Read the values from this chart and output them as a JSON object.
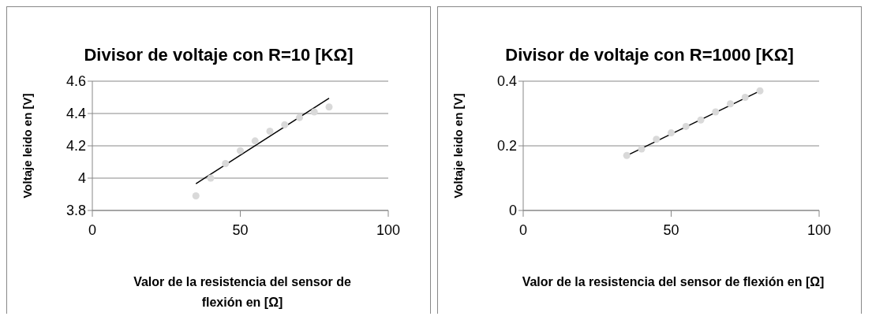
{
  "chart_data": [
    {
      "type": "scatter",
      "title": "Divisor de voltaje con R=10 [KΩ]",
      "xlabel": "Valor de la resistencia del sensor de flexión en [Ω]",
      "ylabel": "Voltaje leido en [V]",
      "xlim": [
        0,
        100
      ],
      "xticks": [
        0,
        50,
        100
      ],
      "ylim": [
        3.8,
        4.6
      ],
      "yticks": [
        3.8,
        4,
        4.2,
        4.4,
        4.6
      ],
      "grid": "y",
      "legend": false,
      "series": [
        {
          "color": "#d9d9d9",
          "marker": "circle",
          "x": [
            35,
            40,
            45,
            50,
            55,
            60,
            65,
            70,
            75,
            80
          ],
          "values": [
            3.89,
            4.0,
            4.09,
            4.17,
            4.23,
            4.29,
            4.33,
            4.375,
            4.41,
            4.44
          ]
        },
        {
          "type": "line",
          "marker": "none",
          "color": "#000000",
          "x": [
            35,
            80
          ],
          "values": [
            3.965,
            4.495
          ]
        }
      ]
    },
    {
      "type": "scatter",
      "title": "Divisor de voltaje con R=1000 [KΩ]",
      "xlabel": "Valor de la resistencia del sensor de flexión en [Ω]",
      "ylabel": "Voltaje leido en [V]",
      "xlim": [
        0,
        100
      ],
      "xticks": [
        0,
        50,
        100
      ],
      "ylim": [
        0,
        0.4
      ],
      "yticks": [
        0,
        0.2,
        0.4
      ],
      "grid": "y",
      "legend": false,
      "series": [
        {
          "color": "#d9d9d9",
          "marker": "circle",
          "x": [
            35,
            40,
            45,
            50,
            55,
            60,
            65,
            70,
            75,
            80
          ],
          "values": [
            0.17,
            0.19,
            0.22,
            0.24,
            0.26,
            0.28,
            0.305,
            0.33,
            0.35,
            0.37
          ]
        },
        {
          "type": "line",
          "marker": "none",
          "color": "#000000",
          "x": [
            35,
            80
          ],
          "values": [
            0.17,
            0.37
          ]
        }
      ]
    }
  ]
}
